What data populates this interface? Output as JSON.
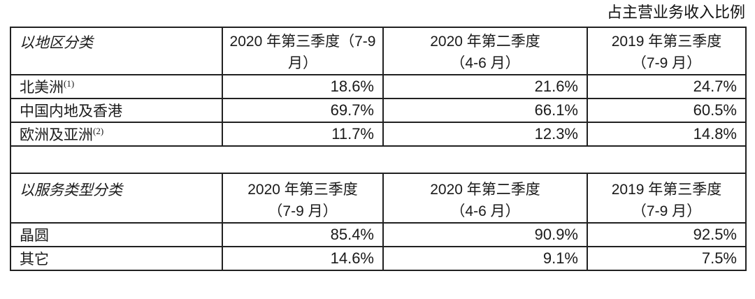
{
  "page": {
    "caption": "占主营业务收入比例"
  },
  "tables": [
    {
      "headers": [
        "以地区分类",
        "2020 年第三季度（7-9\n月）",
        "2020 年第二季度\n（4-6 月）",
        "2019 年第三季度\n（7-9 月）"
      ],
      "rows": [
        {
          "label": "北美洲",
          "sup": "(1)",
          "values": [
            "18.6%",
            "21.6%",
            "24.7%"
          ]
        },
        {
          "label": "中国内地及香港",
          "sup": "",
          "values": [
            "69.7%",
            "66.1%",
            "60.5%"
          ]
        },
        {
          "label": "欧洲及亚洲",
          "sup": "(2)",
          "values": [
            "11.7%",
            "12.3%",
            "14.8%"
          ]
        }
      ]
    },
    {
      "headers": [
        "以服务类型分类",
        "2020 年第三季度\n（7-9 月）",
        "2020 年第二季度\n（4-6 月）",
        "2019 年第三季度\n（7-9 月）"
      ],
      "rows": [
        {
          "label": "晶圆",
          "sup": "",
          "values": [
            "85.4%",
            "90.9%",
            "92.5%"
          ]
        },
        {
          "label": "其它",
          "sup": "",
          "values": [
            "14.6%",
            "9.1%",
            "7.5%"
          ]
        }
      ]
    }
  ]
}
